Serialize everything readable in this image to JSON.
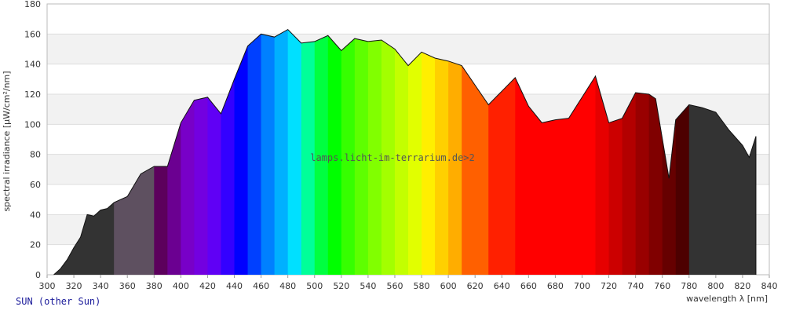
{
  "chart_data": {
    "type": "area",
    "title": "SUN (other Sun)",
    "watermark": "lamps.licht-im-terrarium.de>2",
    "x_label": "wavelength λ [nm]",
    "y_label": "spectral irradiance [µW/cm²/nm]",
    "x": [
      305,
      310,
      315,
      320,
      325,
      330,
      335,
      340,
      345,
      350,
      360,
      370,
      380,
      390,
      400,
      410,
      420,
      430,
      440,
      450,
      460,
      470,
      480,
      490,
      500,
      510,
      520,
      530,
      540,
      550,
      560,
      570,
      580,
      590,
      600,
      610,
      620,
      630,
      640,
      650,
      660,
      670,
      680,
      690,
      700,
      710,
      720,
      730,
      740,
      750,
      755,
      765,
      770,
      780,
      790,
      800,
      810,
      820,
      825,
      830,
      830
    ],
    "values": [
      0,
      4,
      10,
      18,
      25,
      40,
      39,
      43,
      44,
      48,
      52,
      67,
      72,
      72,
      101,
      116,
      118,
      107,
      130,
      152,
      160,
      158,
      163,
      154,
      155,
      159,
      149,
      157,
      155,
      156,
      150,
      139,
      148,
      144,
      142,
      139,
      126,
      113,
      122,
      131,
      112,
      101,
      103,
      104,
      118,
      132,
      101,
      104,
      121,
      120,
      117,
      64,
      103,
      113,
      111,
      108,
      96,
      86,
      78,
      92,
      0
    ],
    "bands": [
      {
        "from": 300,
        "to": 350,
        "color": "#333333"
      },
      {
        "from": 350,
        "to": 380,
        "color": "#5e5060"
      },
      {
        "from": 380,
        "to": 390,
        "color": "#5c005c"
      },
      {
        "from": 390,
        "to": 400,
        "color": "#6b0091"
      },
      {
        "from": 400,
        "to": 410,
        "color": "#7800c8"
      },
      {
        "from": 410,
        "to": 420,
        "color": "#7300e0"
      },
      {
        "from": 420,
        "to": 430,
        "color": "#6000f5"
      },
      {
        "from": 430,
        "to": 440,
        "color": "#3300ff"
      },
      {
        "from": 440,
        "to": 450,
        "color": "#0000ff"
      },
      {
        "from": 450,
        "to": 460,
        "color": "#0040ff"
      },
      {
        "from": 460,
        "to": 470,
        "color": "#0080ff"
      },
      {
        "from": 470,
        "to": 480,
        "color": "#00b0ff"
      },
      {
        "from": 480,
        "to": 490,
        "color": "#00e0ff"
      },
      {
        "from": 490,
        "to": 500,
        "color": "#00ff99"
      },
      {
        "from": 500,
        "to": 510,
        "color": "#00ff40"
      },
      {
        "from": 510,
        "to": 520,
        "color": "#00ff00"
      },
      {
        "from": 520,
        "to": 530,
        "color": "#36ff00"
      },
      {
        "from": 530,
        "to": 540,
        "color": "#5eff00"
      },
      {
        "from": 540,
        "to": 550,
        "color": "#81ff00"
      },
      {
        "from": 550,
        "to": 560,
        "color": "#a3ff00"
      },
      {
        "from": 560,
        "to": 570,
        "color": "#c3ff00"
      },
      {
        "from": 570,
        "to": 580,
        "color": "#e1ff00"
      },
      {
        "from": 580,
        "to": 590,
        "color": "#ffef00"
      },
      {
        "from": 590,
        "to": 600,
        "color": "#ffd000"
      },
      {
        "from": 600,
        "to": 610,
        "color": "#ffad00"
      },
      {
        "from": 610,
        "to": 630,
        "color": "#ff6000"
      },
      {
        "from": 630,
        "to": 650,
        "color": "#ff2000"
      },
      {
        "from": 650,
        "to": 710,
        "color": "#ff0000"
      },
      {
        "from": 710,
        "to": 720,
        "color": "#e60000"
      },
      {
        "from": 720,
        "to": 730,
        "color": "#cc0000"
      },
      {
        "from": 730,
        "to": 740,
        "color": "#b30000"
      },
      {
        "from": 740,
        "to": 750,
        "color": "#990000"
      },
      {
        "from": 750,
        "to": 760,
        "color": "#800000"
      },
      {
        "from": 760,
        "to": 770,
        "color": "#660000"
      },
      {
        "from": 770,
        "to": 780,
        "color": "#4d0000"
      },
      {
        "from": 780,
        "to": 840,
        "color": "#333333"
      }
    ],
    "xlim": [
      300,
      840
    ],
    "ylim": [
      0,
      180
    ],
    "xticks": [
      300,
      320,
      340,
      360,
      380,
      400,
      420,
      440,
      460,
      480,
      500,
      520,
      540,
      560,
      580,
      600,
      620,
      640,
      660,
      680,
      700,
      720,
      740,
      760,
      780,
      800,
      820,
      840
    ],
    "yticks": [
      0,
      20,
      40,
      60,
      80,
      100,
      120,
      140,
      160,
      180
    ],
    "grid": true
  }
}
